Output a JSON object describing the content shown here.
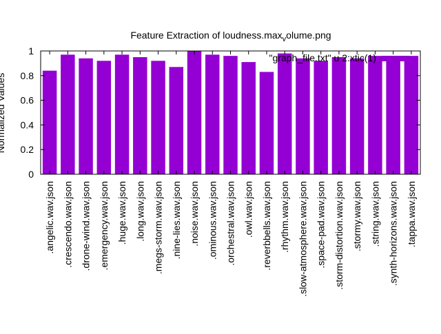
{
  "chart_data": {
    "type": "bar",
    "title_main": "Feature Extraction of loudness.max",
    "title_sub": "v",
    "title_rest": "olume.png",
    "ylabel": "Normalized Values",
    "legend": "\"graph_file.txt\" u 2:xtic(1)",
    "legend_position": "top-right",
    "ylim": [
      0,
      1
    ],
    "yticks": [
      "0",
      "0.2",
      "0.4",
      "0.6",
      "0.8",
      "1"
    ],
    "grid": false,
    "bar_color": "#9400d3",
    "categories": [
      ".angelic.wav.json",
      ".crescendo.wav.json",
      ".drone-wind.wav.json",
      ".emergency.wav.json",
      ".huge.wav.json",
      ".long.wav.json",
      ".megs-storm.wav.json",
      ".nine-lies.wav.json",
      ".noise.wav.json",
      ".ominous.wav.json",
      ".orchestral.wav.json",
      ".owl.wav.json",
      ".reverbbells.wav.json",
      ".rhythm.wav.json",
      ".slow-atmosphere.wav.json",
      ".space-pad.wav.json",
      ".storm-distortion.wav.json",
      ".stormy.wav.json",
      ".string.wav.json",
      ".synth-horizons.wav.json",
      ".tappa.wav.json"
    ],
    "values": [
      0.84,
      0.97,
      0.94,
      0.92,
      0.97,
      0.95,
      0.92,
      0.87,
      1.0,
      0.97,
      0.96,
      0.91,
      0.83,
      0.98,
      0.94,
      0.92,
      0.95,
      0.94,
      0.96,
      0.95,
      0.96
    ]
  }
}
